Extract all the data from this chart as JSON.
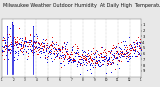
{
  "title": "Milwaukee Weather Outdoor Humidity  At Daily High  Temperature  (Past Year)",
  "title_fontsize": 3.5,
  "bg_color": "#e8e8e8",
  "plot_bg_color": "#ffffff",
  "ylim": [
    0,
    100
  ],
  "ytick_vals": [
    10,
    20,
    30,
    40,
    50,
    60,
    70,
    80,
    90
  ],
  "ytick_labels": [
    "9",
    "8",
    "7",
    "6",
    "5",
    "4",
    "3",
    "2",
    "1"
  ],
  "n_points": 365,
  "blue_color": "#0000dd",
  "red_color": "#dd0000",
  "spike_indices": [
    15,
    26,
    30,
    82
  ],
  "spike_values": [
    88,
    95,
    90,
    88
  ],
  "grid_color": "#999999",
  "n_gridlines": 11,
  "seed": 12345,
  "base_humidity": 42,
  "amplitude": 12,
  "noise_std": 10,
  "marker_size": 0.5,
  "linewidth_spike": 0.5,
  "grid_linewidth": 0.25,
  "n_xticks": 13
}
